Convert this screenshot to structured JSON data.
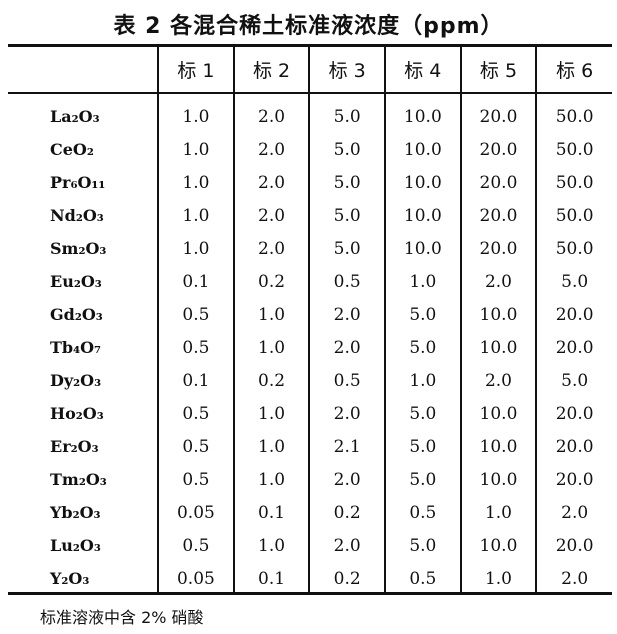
{
  "title": "表 2  各混合稀土标准液浓度（ppm）",
  "columns": [
    "",
    "标 1",
    "标 2",
    "标 3",
    "标 4",
    "标 5",
    "标 6"
  ],
  "rows": [
    {
      "name": "La₂O₃",
      "values": [
        "1.0",
        "2.0",
        "5.0",
        "10.0",
        "20.0",
        "50.0"
      ]
    },
    {
      "name": "CeO₂",
      "values": [
        "1.0",
        "2.0",
        "5.0",
        "10.0",
        "20.0",
        "50.0"
      ]
    },
    {
      "name": "Pr₆O₁₁",
      "values": [
        "1.0",
        "2.0",
        "5.0",
        "10.0",
        "20.0",
        "50.0"
      ]
    },
    {
      "name": "Nd₂O₃",
      "values": [
        "1.0",
        "2.0",
        "5.0",
        "10.0",
        "20.0",
        "50.0"
      ]
    },
    {
      "name": "Sm₂O₃",
      "values": [
        "1.0",
        "2.0",
        "5.0",
        "10.0",
        "20.0",
        "50.0"
      ]
    },
    {
      "name": "Eu₂O₃",
      "values": [
        "0.1",
        "0.2",
        "0.5",
        "1.0",
        "2.0",
        "5.0"
      ]
    },
    {
      "name": "Gd₂O₃",
      "values": [
        "0.5",
        "1.0",
        "2.0",
        "5.0",
        "10.0",
        "20.0"
      ]
    },
    {
      "name": "Tb₄O₇",
      "values": [
        "0.5",
        "1.0",
        "2.0",
        "5.0",
        "10.0",
        "20.0"
      ]
    },
    {
      "name": "Dy₂O₃",
      "values": [
        "0.1",
        "0.2",
        "0.5",
        "1.0",
        "2.0",
        "5.0"
      ]
    },
    {
      "name": "Ho₂O₃",
      "values": [
        "0.5",
        "1.0",
        "2.0",
        "5.0",
        "10.0",
        "20.0"
      ]
    },
    {
      "name": "Er₂O₃",
      "values": [
        "0.5",
        "1.0",
        "2.1",
        "5.0",
        "10.0",
        "20.0"
      ]
    },
    {
      "name": "Tm₂O₃",
      "values": [
        "0.5",
        "1.0",
        "2.0",
        "5.0",
        "10.0",
        "20.0"
      ]
    },
    {
      "name": "Yb₂O₃",
      "values": [
        "0.05",
        "0.1",
        "0.2",
        "0.5",
        "1.0",
        "2.0"
      ]
    },
    {
      "name": "Lu₂O₃",
      "values": [
        "0.5",
        "1.0",
        "2.0",
        "5.0",
        "10.0",
        "20.0"
      ]
    },
    {
      "name": "Y₂O₃",
      "values": [
        "0.05",
        "0.1",
        "0.2",
        "0.5",
        "1.0",
        "2.0"
      ]
    }
  ],
  "footnote": "标准溶液中含 2% 硝酸"
}
